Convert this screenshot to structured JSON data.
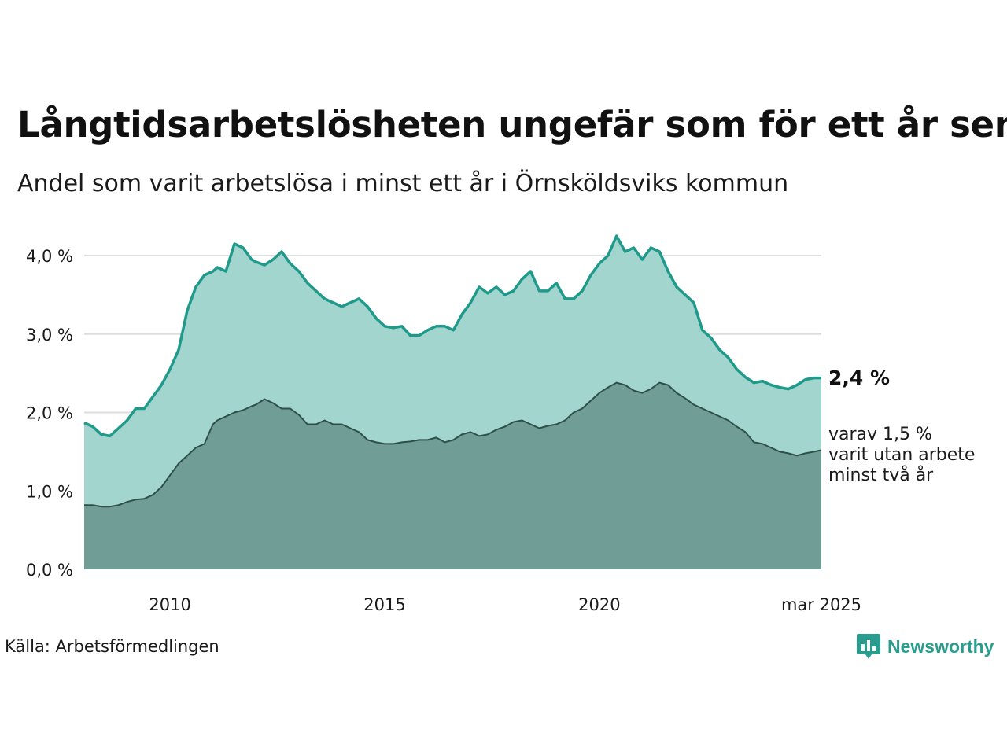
{
  "title": "Långtidsarbetslösheten ungefär som för ett år sen",
  "subtitle": "Andel som varit arbetslösa i minst ett år i Örnsköldsviks kommun",
  "source": "Källa: Arbetsförmedlingen",
  "brand": "Newsworthy",
  "end_label": "2,4 %",
  "sub_label_lines": [
    "varav 1,5 %",
    "varit utan arbete",
    "minst två år"
  ],
  "colors": {
    "upper_line": "#1f9a8a",
    "upper_fill": "#a3d5cf",
    "lower_line": "#2f4f4a",
    "lower_fill": "#719d97",
    "grid": "#dddddd",
    "brand": "#2a9d8f"
  },
  "chart_data": {
    "type": "area",
    "title": "Långtidsarbetslösheten ungefär som för ett år sen",
    "subtitle": "Andel som varit arbetslösa i minst ett år i Örnsköldsviks kommun",
    "x_ticks": [
      {
        "x": 2010,
        "label": "2010"
      },
      {
        "x": 2015,
        "label": "2015"
      },
      {
        "x": 2020,
        "label": "2020"
      },
      {
        "x": 2025.17,
        "label": "mar 2025"
      }
    ],
    "y_ticks": [
      {
        "y": 0,
        "label": "0,0 %"
      },
      {
        "y": 1,
        "label": "1,0 %"
      },
      {
        "y": 2,
        "label": "2,0 %"
      },
      {
        "y": 3,
        "label": "3,0 %"
      },
      {
        "y": 4,
        "label": "4,0 %"
      }
    ],
    "xlim": [
      2008.0,
      2025.17
    ],
    "ylim": [
      0,
      4.3
    ],
    "grid": true,
    "series": [
      {
        "x": [
          2008.0,
          2008.2,
          2008.4,
          2008.6,
          2008.8,
          2009.0,
          2009.2,
          2009.4,
          2009.6,
          2009.8,
          2010.0,
          2010.2,
          2010.4,
          2010.6,
          2010.8,
          2011.0,
          2011.1,
          2011.3,
          2011.5,
          2011.7,
          2011.9,
          2012.0,
          2012.2,
          2012.4,
          2012.6,
          2012.8,
          2013.0,
          2013.2,
          2013.4,
          2013.6,
          2013.8,
          2014.0,
          2014.2,
          2014.4,
          2014.6,
          2014.8,
          2015.0,
          2015.2,
          2015.4,
          2015.6,
          2015.8,
          2016.0,
          2016.2,
          2016.4,
          2016.6,
          2016.8,
          2017.0,
          2017.2,
          2017.4,
          2017.6,
          2017.8,
          2018.0,
          2018.2,
          2018.4,
          2018.6,
          2018.8,
          2019.0,
          2019.2,
          2019.4,
          2019.6,
          2019.8,
          2020.0,
          2020.2,
          2020.4,
          2020.6,
          2020.8,
          2021.0,
          2021.2,
          2021.4,
          2021.6,
          2021.8,
          2022.0,
          2022.2,
          2022.4,
          2022.6,
          2022.8,
          2023.0,
          2023.2,
          2023.4,
          2023.6,
          2023.8,
          2024.0,
          2024.2,
          2024.4,
          2024.6,
          2024.8,
          2025.0,
          2025.17
        ],
        "values": [
          1.87,
          1.82,
          1.72,
          1.7,
          1.8,
          1.9,
          2.05,
          2.05,
          2.2,
          2.35,
          2.55,
          2.8,
          3.3,
          3.6,
          3.75,
          3.8,
          3.85,
          3.8,
          4.15,
          4.1,
          3.95,
          3.92,
          3.88,
          3.95,
          4.05,
          3.9,
          3.8,
          3.65,
          3.55,
          3.45,
          3.4,
          3.35,
          3.4,
          3.45,
          3.35,
          3.2,
          3.1,
          3.08,
          3.1,
          2.98,
          2.98,
          3.05,
          3.1,
          3.1,
          3.05,
          3.25,
          3.4,
          3.6,
          3.52,
          3.6,
          3.5,
          3.55,
          3.7,
          3.8,
          3.55,
          3.55,
          3.65,
          3.45,
          3.45,
          3.55,
          3.75,
          3.9,
          4.0,
          4.25,
          4.05,
          4.1,
          3.95,
          4.1,
          4.05,
          3.8,
          3.6,
          3.5,
          3.4,
          3.05,
          2.95,
          2.8,
          2.7,
          2.55,
          2.45,
          2.38,
          2.4,
          2.35,
          2.32,
          2.3,
          2.35,
          2.42,
          2.44,
          2.44
        ]
      },
      {
        "x": [
          2008.0,
          2008.2,
          2008.4,
          2008.6,
          2008.8,
          2009.0,
          2009.2,
          2009.4,
          2009.6,
          2009.8,
          2010.0,
          2010.2,
          2010.4,
          2010.6,
          2010.8,
          2011.0,
          2011.1,
          2011.3,
          2011.5,
          2011.7,
          2011.9,
          2012.0,
          2012.2,
          2012.4,
          2012.6,
          2012.8,
          2013.0,
          2013.2,
          2013.4,
          2013.6,
          2013.8,
          2014.0,
          2014.2,
          2014.4,
          2014.6,
          2014.8,
          2015.0,
          2015.2,
          2015.4,
          2015.6,
          2015.8,
          2016.0,
          2016.2,
          2016.4,
          2016.6,
          2016.8,
          2017.0,
          2017.2,
          2017.4,
          2017.6,
          2017.8,
          2018.0,
          2018.2,
          2018.4,
          2018.6,
          2018.8,
          2019.0,
          2019.2,
          2019.4,
          2019.6,
          2019.8,
          2020.0,
          2020.2,
          2020.4,
          2020.6,
          2020.8,
          2021.0,
          2021.2,
          2021.4,
          2021.6,
          2021.8,
          2022.0,
          2022.2,
          2022.4,
          2022.6,
          2022.8,
          2023.0,
          2023.2,
          2023.4,
          2023.6,
          2023.8,
          2024.0,
          2024.2,
          2024.4,
          2024.6,
          2024.8,
          2025.0,
          2025.17
        ],
        "values": [
          0.82,
          0.82,
          0.8,
          0.8,
          0.82,
          0.86,
          0.89,
          0.9,
          0.95,
          1.05,
          1.2,
          1.35,
          1.45,
          1.55,
          1.6,
          1.85,
          1.9,
          1.95,
          2.0,
          2.03,
          2.08,
          2.1,
          2.17,
          2.12,
          2.05,
          2.05,
          1.97,
          1.85,
          1.85,
          1.9,
          1.85,
          1.85,
          1.8,
          1.75,
          1.65,
          1.62,
          1.6,
          1.6,
          1.62,
          1.63,
          1.65,
          1.65,
          1.68,
          1.62,
          1.65,
          1.72,
          1.75,
          1.7,
          1.72,
          1.78,
          1.82,
          1.88,
          1.9,
          1.85,
          1.8,
          1.83,
          1.85,
          1.9,
          2.0,
          2.05,
          2.15,
          2.25,
          2.32,
          2.38,
          2.35,
          2.28,
          2.25,
          2.3,
          2.38,
          2.35,
          2.25,
          2.18,
          2.1,
          2.05,
          2.0,
          1.95,
          1.9,
          1.82,
          1.75,
          1.62,
          1.6,
          1.55,
          1.5,
          1.48,
          1.45,
          1.48,
          1.5,
          1.52
        ]
      }
    ]
  }
}
